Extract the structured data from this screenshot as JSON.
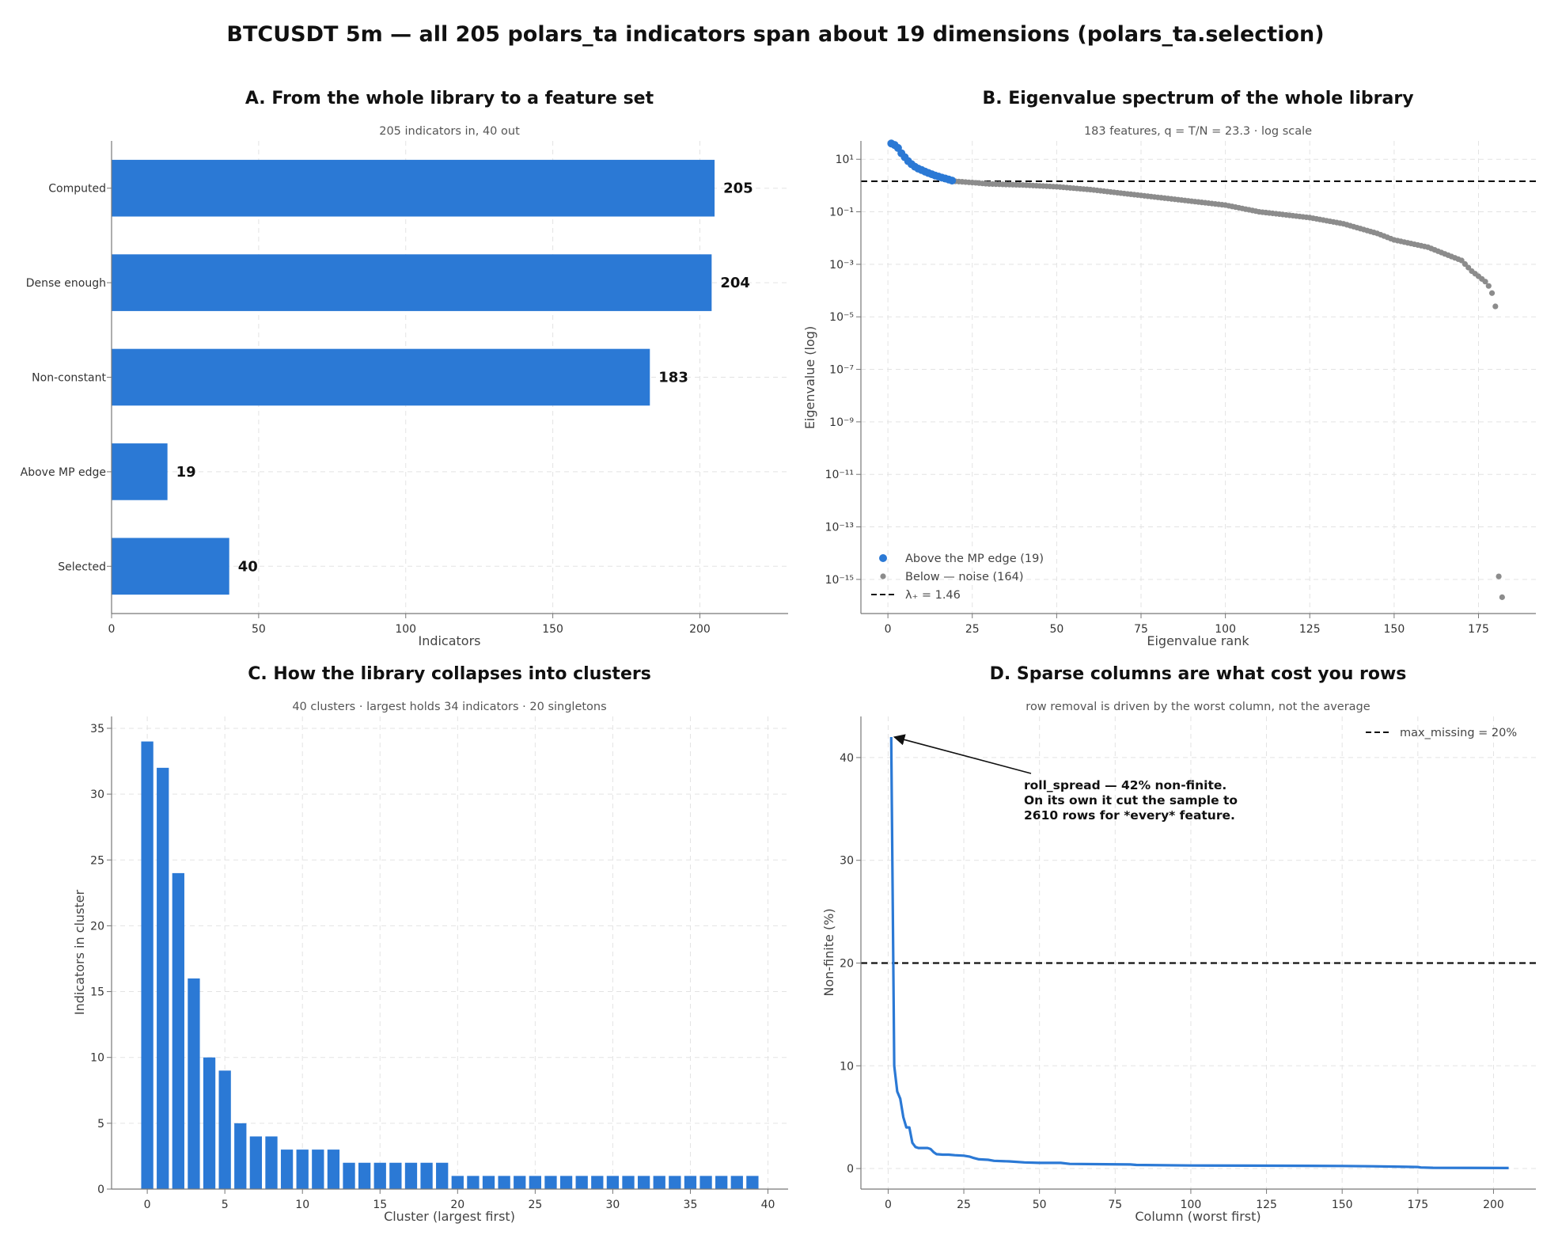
{
  "figure_title": "BTCUSDT 5m — all 205 polars_ta indicators span about 19 dimensions (polars_ta.selection)",
  "chart_data": [
    {
      "panel": "A",
      "type": "bar",
      "orientation": "horizontal",
      "title": "A. From the whole library to a feature set",
      "subtitle": "205 indicators in, 40 out",
      "categories": [
        "Computed",
        "Dense enough",
        "Non-constant",
        "Above MP edge",
        "Selected"
      ],
      "values": [
        205,
        204,
        183,
        19,
        40
      ],
      "xlabel": "Indicators",
      "ylabel": "",
      "xlim": [
        0,
        230
      ],
      "xticks": [
        0,
        50,
        100,
        150,
        200
      ],
      "color": "#2b79d5",
      "grid": true
    },
    {
      "panel": "B",
      "type": "scatter",
      "title": "B. Eigenvalue spectrum of the whole library",
      "subtitle": "183 features, q = T/N = 23.3  ·  log scale",
      "xlabel": "Eigenvalue rank",
      "ylabel": "Eigenvalue (log)",
      "yscale": "log",
      "xlim": [
        -8,
        192
      ],
      "ylim_log10": [
        -16.3,
        1.7
      ],
      "xticks": [
        0,
        25,
        50,
        75,
        100,
        125,
        150,
        175
      ],
      "yticks_exponents": [
        1,
        -1,
        -3,
        -5,
        -7,
        -9,
        -11,
        -13,
        -15
      ],
      "threshold": {
        "label": "λ₊ = 1.46",
        "value": 1.46
      },
      "legend_position": "lower-left",
      "grid": true,
      "series": [
        {
          "name": "Above the MP edge (19)",
          "color": "#2b79d5",
          "x": [
            1,
            2,
            3,
            4,
            5,
            6,
            7,
            8,
            9,
            10,
            11,
            12,
            13,
            14,
            15,
            16,
            17,
            18,
            19
          ],
          "y": [
            40,
            35,
            27,
            17,
            12,
            8.5,
            6.5,
            5.2,
            4.4,
            3.9,
            3.4,
            3.0,
            2.7,
            2.4,
            2.2,
            2.0,
            1.85,
            1.7,
            1.55
          ]
        },
        {
          "name": "Below — noise (164)",
          "color": "#8c8c8c",
          "x_range": [
            20,
            183
          ],
          "anchors_x": [
            20,
            25,
            30,
            40,
            50,
            60,
            75,
            85,
            100,
            110,
            125,
            135,
            145,
            150,
            160,
            165,
            170,
            173,
            175,
            177,
            178,
            179,
            180
          ],
          "anchors_y": [
            1.45,
            1.3,
            1.15,
            1.05,
            0.9,
            0.7,
            0.42,
            0.3,
            0.18,
            0.1,
            0.06,
            0.035,
            0.015,
            0.0085,
            0.0045,
            0.0025,
            0.0014,
            0.00055,
            0.00035,
            0.00022,
            0.00015,
            8e-05,
            2.5e-05
          ],
          "tail": [
            {
              "x": 181,
              "y": 1.3e-15
            },
            {
              "x": 182,
              "y": 2.1e-16
            }
          ]
        }
      ]
    },
    {
      "panel": "C",
      "type": "bar",
      "title": "C. How the library collapses into clusters",
      "subtitle": "40 clusters  ·  largest holds 34 indicators  ·  20 singletons",
      "xlabel": "Cluster (largest first)",
      "ylabel": "Indicators in cluster",
      "xlim": [
        -2.3,
        41.3
      ],
      "ylim": [
        0,
        35.9
      ],
      "xticks": [
        0,
        5,
        10,
        15,
        20,
        25,
        30,
        35,
        40
      ],
      "yticks": [
        0,
        5,
        10,
        15,
        20,
        25,
        30,
        35
      ],
      "color": "#2b79d5",
      "grid": true,
      "x": [
        0,
        1,
        2,
        3,
        4,
        5,
        6,
        7,
        8,
        9,
        10,
        11,
        12,
        13,
        14,
        15,
        16,
        17,
        18,
        19,
        20,
        21,
        22,
        23,
        24,
        25,
        26,
        27,
        28,
        29,
        30,
        31,
        32,
        33,
        34,
        35,
        36,
        37,
        38,
        39
      ],
      "values": [
        34,
        32,
        24,
        16,
        10,
        9,
        5,
        4,
        4,
        3,
        3,
        3,
        3,
        2,
        2,
        2,
        2,
        2,
        2,
        2,
        1,
        1,
        1,
        1,
        1,
        1,
        1,
        1,
        1,
        1,
        1,
        1,
        1,
        1,
        1,
        1,
        1,
        1,
        1,
        1
      ]
    },
    {
      "panel": "D",
      "type": "line",
      "title": "D. Sparse columns are what cost you rows",
      "subtitle": "row removal is driven by the worst column, not the average",
      "xlabel": "Column (worst first)",
      "ylabel": "Non-finite (%)",
      "xlim": [
        -9,
        214
      ],
      "ylim": [
        -2,
        44
      ],
      "xticks": [
        0,
        25,
        50,
        75,
        100,
        125,
        150,
        175,
        200
      ],
      "yticks": [
        0,
        10,
        20,
        30,
        40
      ],
      "threshold": {
        "label": "max_missing = 20%",
        "value": 20
      },
      "legend_position": "top-right",
      "color": "#2b79d5",
      "grid": true,
      "x": [
        1,
        2,
        3,
        4,
        5,
        6,
        7,
        8,
        9,
        10,
        12,
        13,
        14,
        15,
        16,
        18,
        20,
        22,
        25,
        27,
        28,
        30,
        33,
        35,
        40,
        45,
        50,
        57,
        60,
        80,
        82,
        100,
        120,
        150,
        160,
        175,
        176,
        180,
        205
      ],
      "y": [
        42,
        10,
        7.5,
        6.8,
        5,
        4,
        4,
        2.5,
        2.1,
        2,
        2,
        2,
        1.9,
        1.6,
        1.4,
        1.35,
        1.35,
        1.3,
        1.25,
        1.15,
        1.05,
        0.9,
        0.85,
        0.75,
        0.7,
        0.6,
        0.55,
        0.55,
        0.45,
        0.4,
        0.35,
        0.3,
        0.28,
        0.25,
        0.22,
        0.15,
        0.1,
        0.07,
        0.05
      ],
      "annotation": {
        "lines": [
          "roll_spread — 42% non-finite.",
          "On its own it cut the sample to",
          "2610 rows for *every* feature."
        ],
        "target": {
          "x": 1,
          "y": 42
        }
      }
    }
  ]
}
